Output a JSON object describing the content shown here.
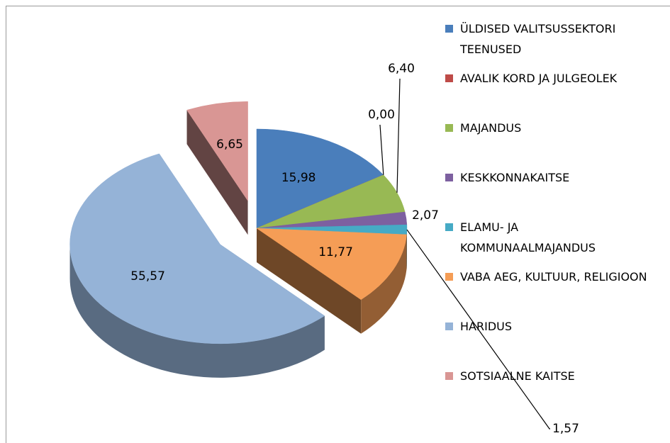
{
  "chart_data": {
    "type": "pie",
    "categories": [
      "ÜLDISED VALITSUSSEKTORI TEENUSED",
      "AVALIK KORD JA JULGEOLEK",
      "MAJANDUS",
      "KESKKONNAKAITSE",
      "ELAMU- JA KOMMUNAALMAJANDUS",
      "VABA AEG, KULTUUR, RELIGIOON",
      "HARIDUS",
      "SOTSIAALNE KAITSE"
    ],
    "values": [
      15.98,
      0.0,
      6.4,
      2.07,
      1.57,
      11.77,
      55.57,
      6.65
    ],
    "value_labels": [
      "15,98",
      "0,00",
      "6,40",
      "2,07",
      "1,57",
      "11,77",
      "55,57",
      "6,65"
    ],
    "colors": [
      "#4a7ebb",
      "#be4b48",
      "#98b954",
      "#7d60a0",
      "#46aac5",
      "#f59d56",
      "#95b3d7",
      "#d99694"
    ],
    "legend": "right"
  }
}
